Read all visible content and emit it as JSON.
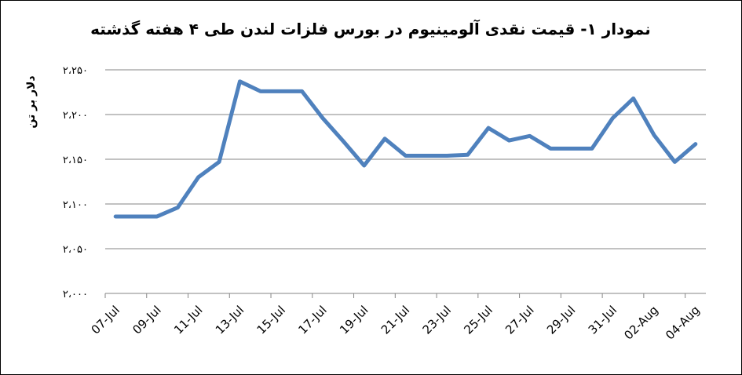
{
  "chart_data": {
    "type": "line",
    "title": "نمودار ۱- قیمت نقدی آلومینیوم در بورس فلزات لندن طی ۴ هفته گذشته",
    "y_label": "دلار بر تن",
    "categories": [
      "07-Jul",
      null,
      "09-Jul",
      null,
      "11-Jul",
      null,
      "13-Jul",
      null,
      "15-Jul",
      null,
      "17-Jul",
      null,
      "19-Jul",
      null,
      "21-Jul",
      null,
      "23-Jul",
      null,
      "25-Jul",
      null,
      "27-Jul",
      null,
      "29-Jul",
      null,
      "31-Jul",
      null,
      "02-Aug",
      null,
      "04-Aug"
    ],
    "series": [
      {
        "name": "قیمت نقدی آلومینیوم",
        "color": "#4f81bd",
        "values": [
          2086,
          2086,
          2086,
          2096,
          2130,
          2147,
          2237,
          2226,
          2226,
          2226,
          2196,
          2170,
          2143,
          2173,
          2154,
          2154,
          2154,
          2155,
          2185,
          2171,
          2176,
          2162,
          2162,
          2162,
          2196,
          2218,
          2177,
          2147,
          2167
        ]
      }
    ],
    "ylim": [
      2000,
      2250
    ],
    "yticks": [
      {
        "value": 2000,
        "label": "۲،۰۰۰"
      },
      {
        "value": 2050,
        "label": "۲،۰۵۰"
      },
      {
        "value": 2100,
        "label": "۲،۱۰۰"
      },
      {
        "value": 2150,
        "label": "۲،۱۵۰"
      },
      {
        "value": 2200,
        "label": "۲،۲۰۰"
      },
      {
        "value": 2250,
        "label": "۲،۲۵۰"
      }
    ],
    "grid": true
  }
}
